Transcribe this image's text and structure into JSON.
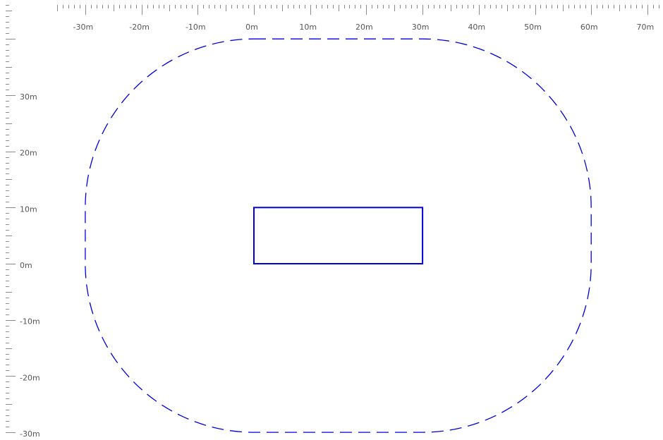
{
  "rulers": {
    "top": {
      "labels": [
        "-30m",
        "-20m",
        "-10m",
        "0m",
        "10m",
        "20m",
        "30m",
        "40m",
        "50m",
        "60m",
        "70m"
      ]
    },
    "left": {
      "labels": [
        "30m",
        "20m",
        "10m",
        "0m",
        "-10m",
        "-20m",
        "-30m"
      ]
    }
  },
  "shapes": {
    "building": {
      "x_range_m": [
        0,
        30
      ],
      "y_range_m": [
        0,
        10
      ],
      "stroke_color": "#0000dd",
      "line_style": "solid"
    },
    "buffer_zone": {
      "x_range_m": [
        -30,
        60
      ],
      "y_range_m": [
        -30,
        40
      ],
      "corner_radius_m": 30,
      "stroke_color": "#0000dd",
      "line_style": "dashed"
    }
  },
  "colors": {
    "background": "#ffffff",
    "ruler_ticks": "#8a8a8a",
    "ruler_text": "#555555"
  }
}
